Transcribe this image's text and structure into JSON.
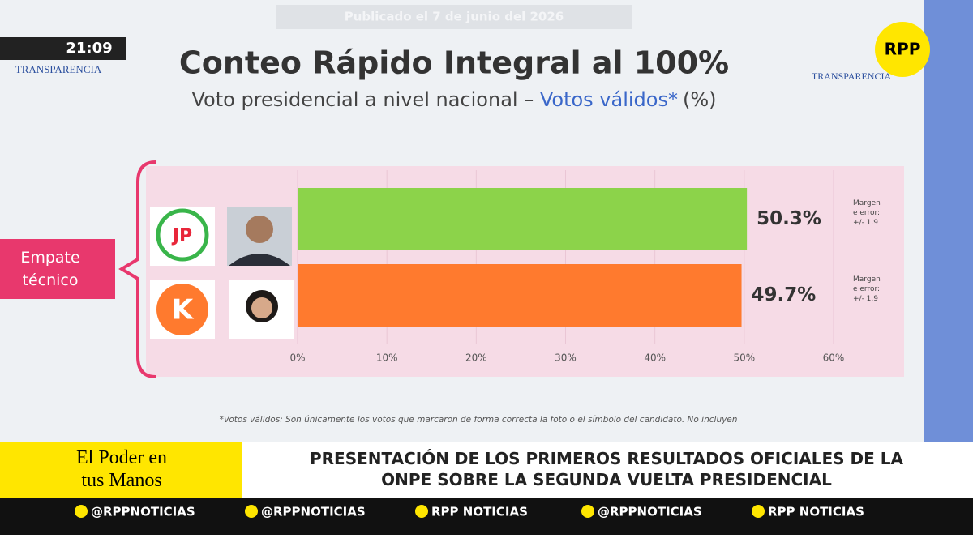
{
  "broadcast": {
    "time": "21:09",
    "published": "Publicado el 7 de junio del 2026",
    "left_logo": "TRANSPARENCIA",
    "right_logo": "TRANSPARENCIA",
    "channel": "RPP"
  },
  "chart_data": {
    "type": "bar",
    "orientation": "horizontal",
    "title": "Conteo Rápido Integral al 100%",
    "subtitle": [
      "Voto presidencial a nivel nacional – ",
      "Votos válidos*",
      "(%)"
    ],
    "group_label": "Empate técnico",
    "party_logos": [
      "JP",
      "K"
    ],
    "categories": [
      null,
      null
    ],
    "values": [
      50.3,
      49.7
    ],
    "value_labels": [
      "50.3%",
      "49.7%"
    ],
    "colors": [
      "#8cd34a",
      "#ff7a2e"
    ],
    "annotations": [
      "Margen de error: +/- 1.9",
      "Margen de error: +/- 1.9"
    ],
    "xlim": [
      0,
      60
    ],
    "xticks": [
      {
        "value": 0,
        "label": "0%"
      },
      {
        "value": 10,
        "label": "10%"
      },
      {
        "value": 20,
        "label": "20%"
      },
      {
        "value": 30,
        "label": "30%"
      },
      {
        "value": 40,
        "label": "40%"
      },
      {
        "value": 50,
        "label": "50%"
      },
      {
        "value": 60,
        "label": "60%"
      }
    ],
    "grid": true,
    "footnote": "*Votos válidos: Son únicamente los votos que marcaron de forma correcta la foto o el símbolo del candidato. No incluyen"
  },
  "lower_third": {
    "program": "El Poder en tus Manos",
    "headline": "PRESENTACIÓN DE LOS PRIMEROS RESULTADOS OFICIALES DE LA ONPE SOBRE LA SEGUNDA VUELTA PRESIDENCIAL"
  },
  "social": [
    "@RPPNOTICIAS",
    "@RPPNOTICIAS",
    "RPP NOTICIAS",
    "@RPPNOTICIAS",
    "RPP NOTICIAS"
  ]
}
